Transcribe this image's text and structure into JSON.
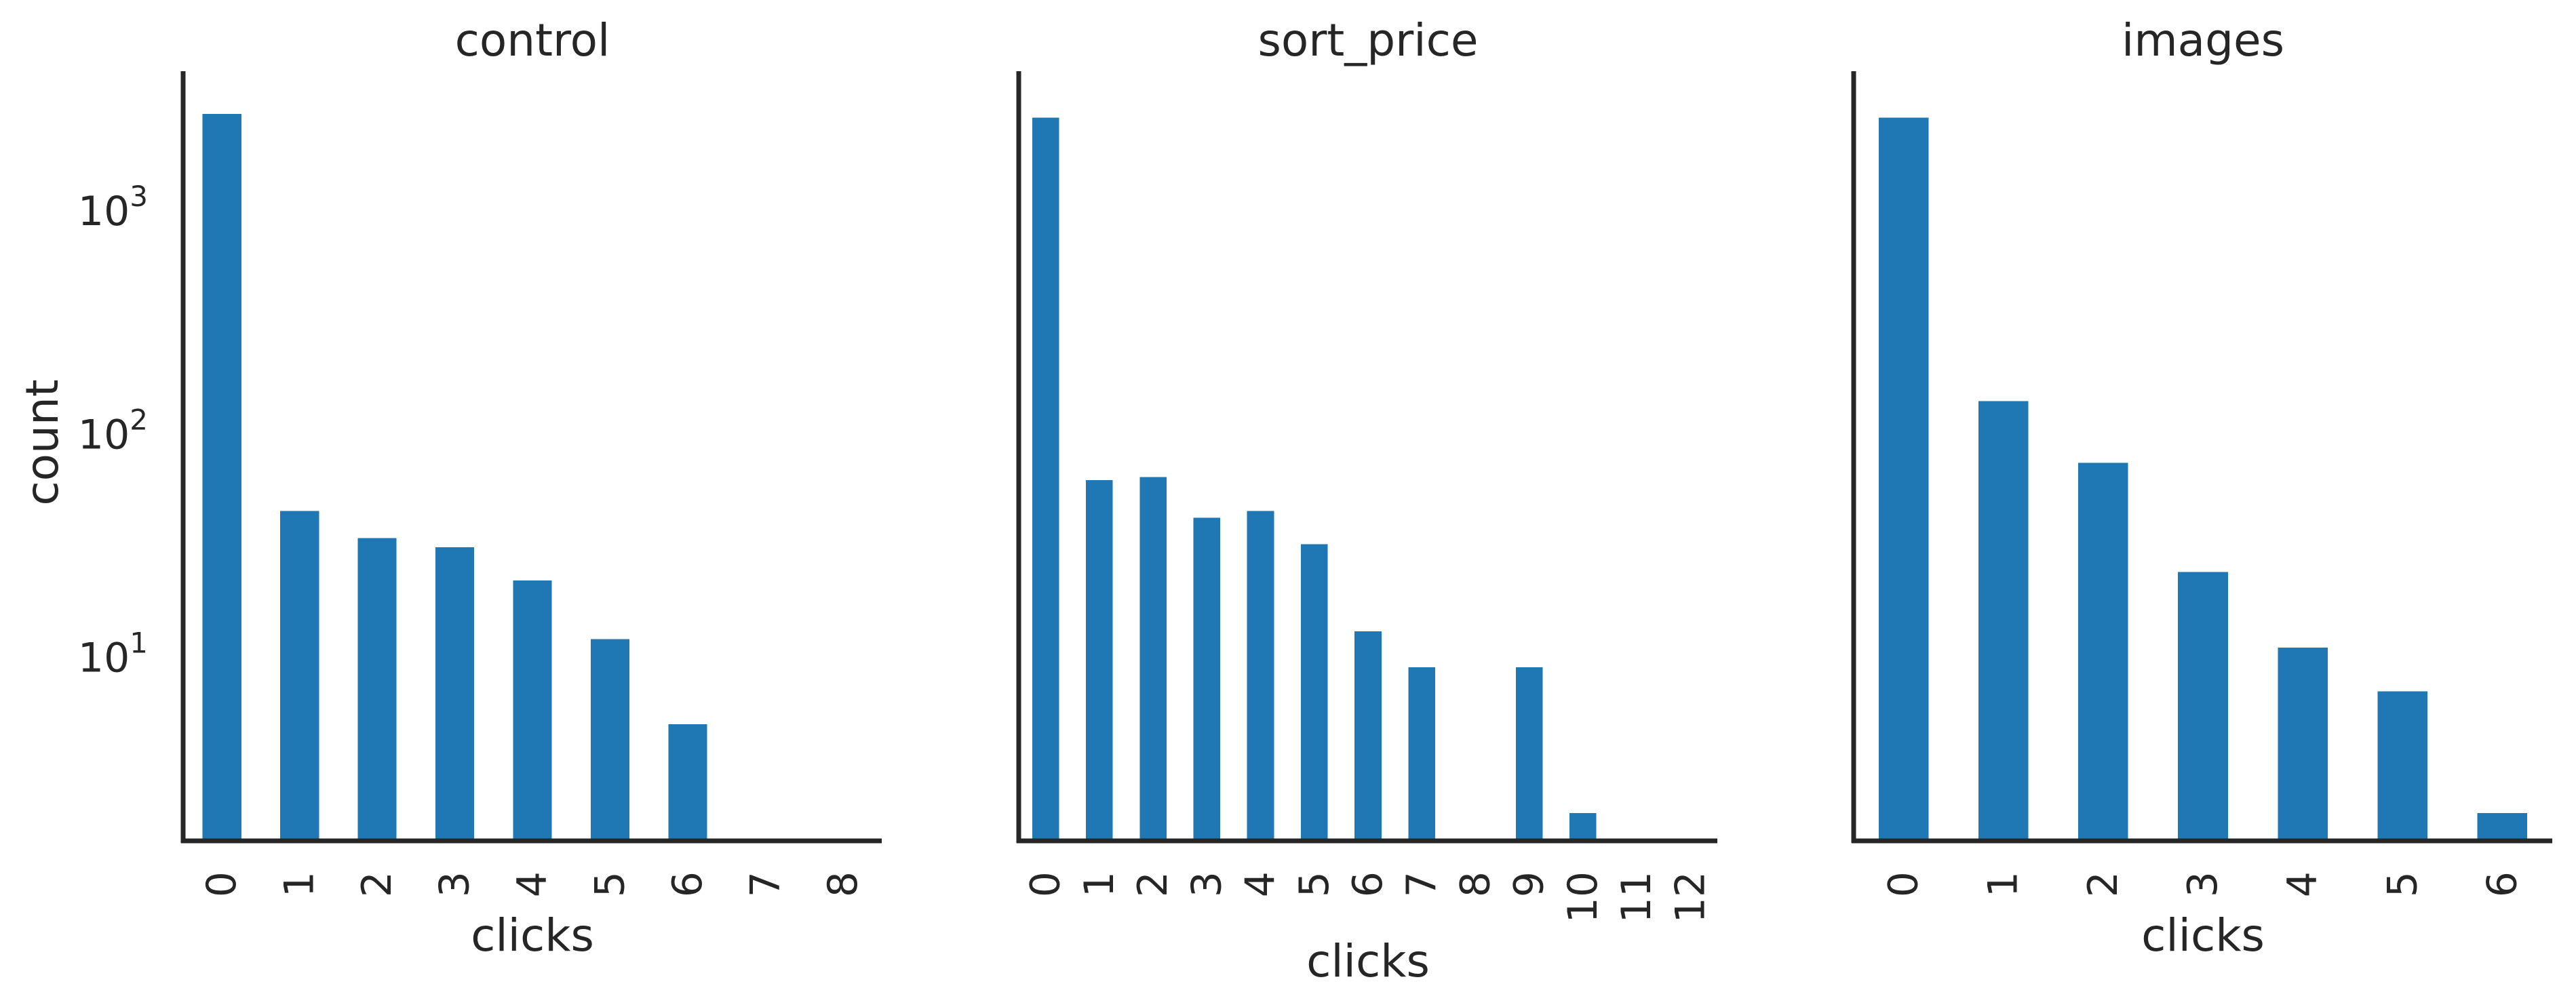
{
  "figure": {
    "ylabel": "count",
    "ytick_labels": [
      {
        "base": "10",
        "exp": "1",
        "value": 10
      },
      {
        "base": "10",
        "exp": "2",
        "value": 100
      },
      {
        "base": "10",
        "exp": "3",
        "value": 1000
      }
    ]
  },
  "chart_data": [
    {
      "type": "bar",
      "title": "control",
      "xlabel": "clicks",
      "ylabel": "count",
      "yscale": "log",
      "ylim": [
        1.5,
        4200
      ],
      "grid": false,
      "color": "#1f77b4",
      "categories": [
        "0",
        "1",
        "2",
        "3",
        "4",
        "5",
        "6",
        "7",
        "8"
      ],
      "values": [
        2700,
        45,
        34,
        31,
        22,
        12,
        5,
        null,
        null
      ]
    },
    {
      "type": "bar",
      "title": "sort_price",
      "xlabel": "clicks",
      "ylabel": "",
      "yscale": "log",
      "ylim": [
        1.5,
        4200
      ],
      "grid": false,
      "color": "#1f77b4",
      "categories": [
        "0",
        "1",
        "2",
        "3",
        "4",
        "5",
        "6",
        "7",
        "8",
        "9",
        "10",
        "11",
        "12"
      ],
      "values": [
        2600,
        62,
        64,
        42,
        45,
        32,
        13,
        9,
        null,
        9,
        2,
        null,
        null
      ]
    },
    {
      "type": "bar",
      "title": "images",
      "xlabel": "clicks",
      "ylabel": "",
      "yscale": "log",
      "ylim": [
        1.5,
        4200
      ],
      "grid": false,
      "color": "#1f77b4",
      "categories": [
        "0",
        "1",
        "2",
        "3",
        "4",
        "5",
        "6"
      ],
      "values": [
        2600,
        140,
        74,
        24,
        11,
        7,
        2
      ]
    }
  ]
}
